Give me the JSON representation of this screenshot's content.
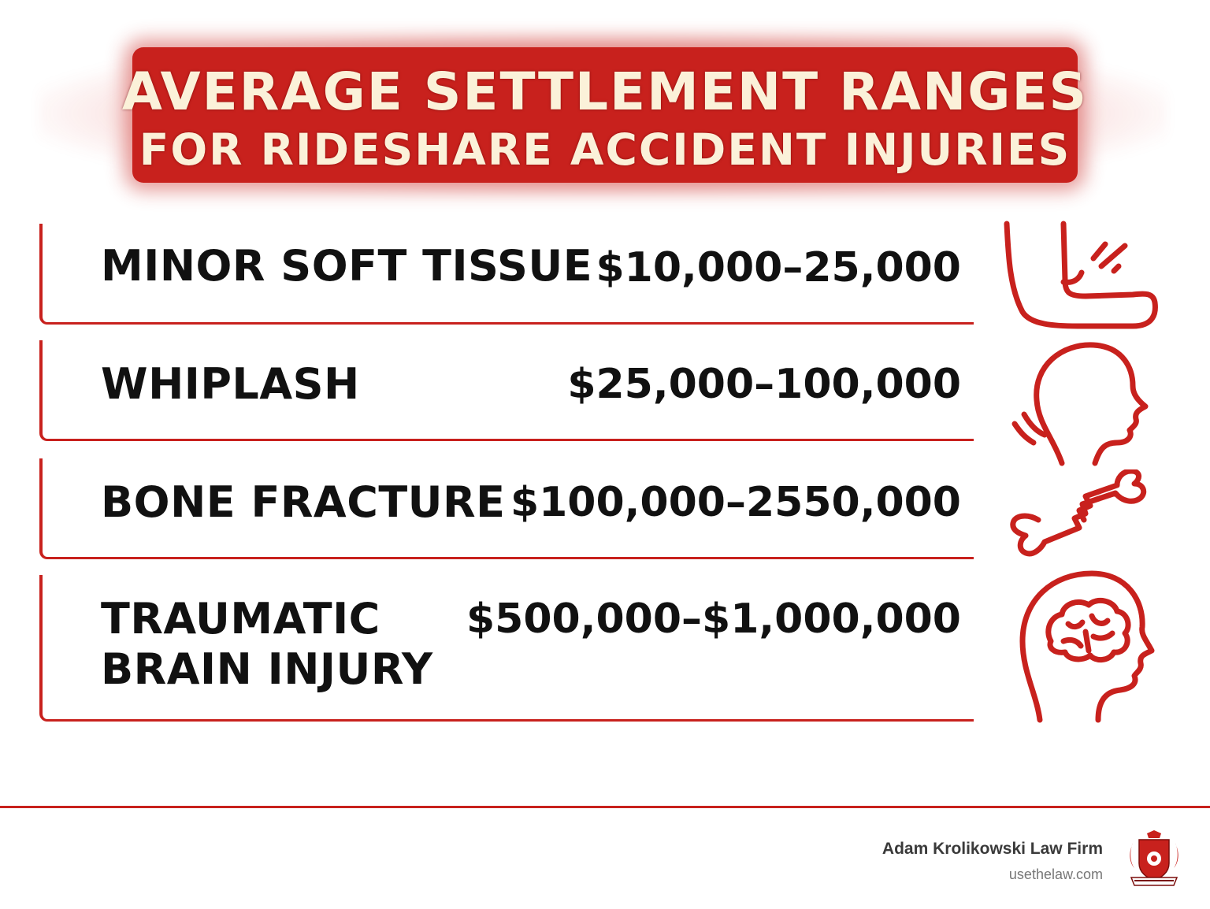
{
  "title": {
    "line1": "AVERAGE SETTLEMENT RANGES",
    "line2": "FOR RIDESHARE ACCIDENT INJURIES"
  },
  "rows": [
    {
      "injury": "MINOR SOFT TISSUE",
      "range": "$10,000–25,000",
      "icon": "elbow-icon"
    },
    {
      "injury": "WHIPLASH",
      "range": "$25,000–100,000",
      "icon": "head-profile-icon"
    },
    {
      "injury": "BONE FRACTURE",
      "range": "$100,000–2550,000",
      "icon": "broken-bone-icon"
    },
    {
      "injury_line1": "TRAUMATIC",
      "injury_line2": "BRAIN INJURY",
      "range": "$500,000–$1,000,000",
      "icon": "brain-head-icon"
    }
  ],
  "footer": {
    "firm_name": "Adam Krolikowski Law Firm",
    "url": "usethelaw.com",
    "logo_icon": "coat-of-arms-logo"
  },
  "colors": {
    "accent": "#c8211d",
    "title_text": "#fbf1d9",
    "body_text": "#111111"
  }
}
